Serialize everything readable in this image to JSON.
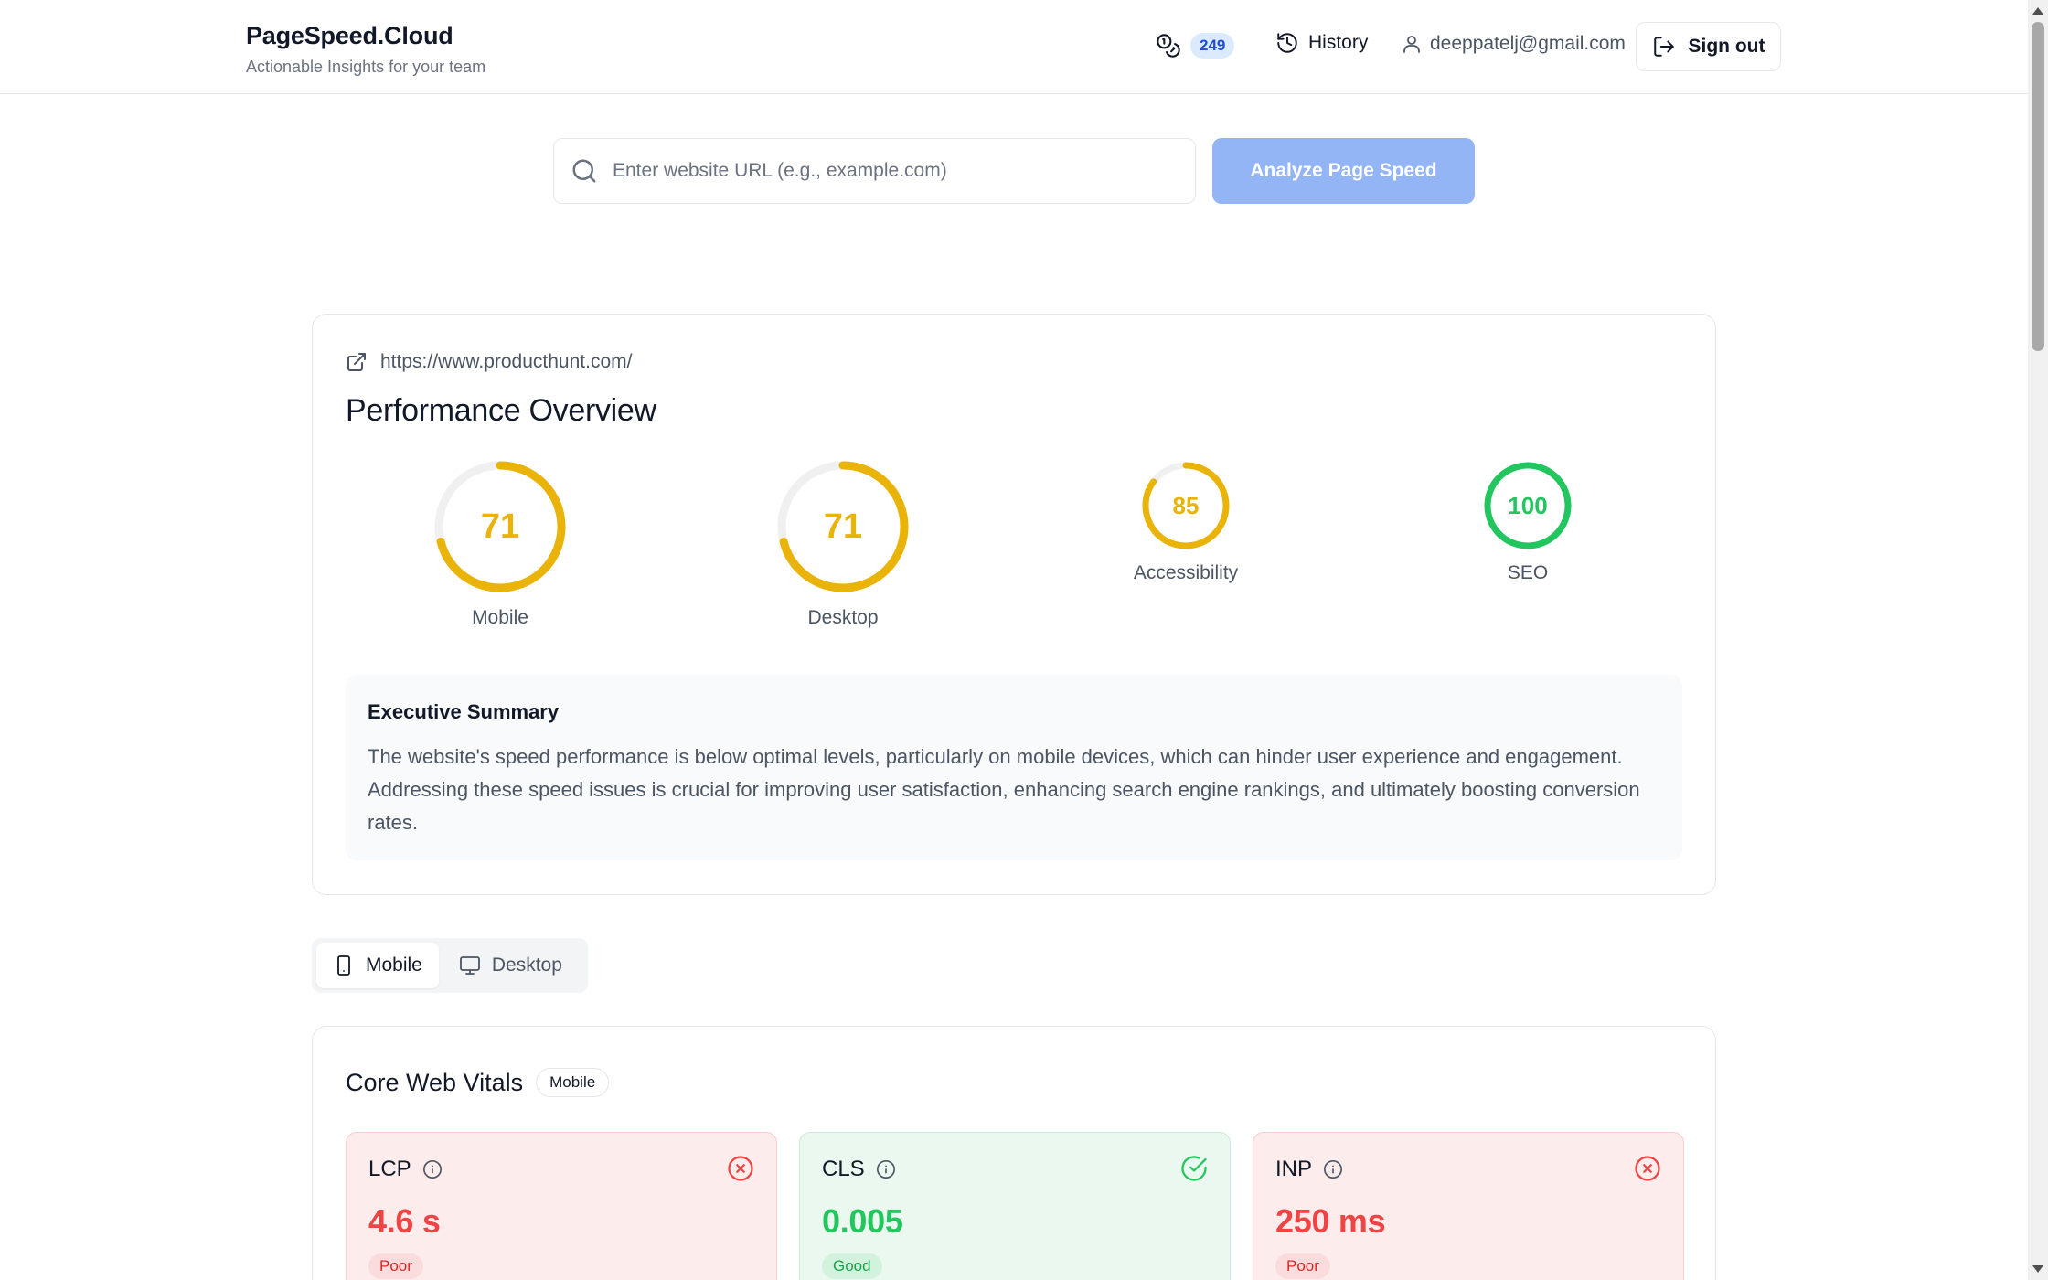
{
  "header": {
    "brand_title": "PageSpeed.Cloud",
    "brand_subtitle": "Actionable Insights for your team",
    "credits_count": "249",
    "history_label": "History",
    "user_email": "deeppatelj@gmail.com",
    "signout_label": "Sign out"
  },
  "search": {
    "placeholder": "Enter website URL (e.g., example.com)",
    "value": "",
    "analyze_label": "Analyze Page Speed"
  },
  "overview": {
    "url": "https://www.producthunt.com/",
    "title": "Performance Overview",
    "scores": [
      {
        "label": "Mobile",
        "value": 71,
        "color": "#eab308"
      },
      {
        "label": "Desktop",
        "value": 71,
        "color": "#eab308"
      },
      {
        "label": "Accessibility",
        "value": 85,
        "color": "#eab308"
      },
      {
        "label": "SEO",
        "value": 100,
        "color": "#22c55e"
      }
    ],
    "summary_title": "Executive Summary",
    "summary_text": "The website's speed performance is below optimal levels, particularly on mobile devices, which can hinder user experience and engagement. Addressing these speed issues is crucial for improving user satisfaction, enhancing search engine rankings, and ultimately boosting conversion rates."
  },
  "device_toggle": {
    "mobile_label": "Mobile",
    "desktop_label": "Desktop",
    "selected": "Mobile"
  },
  "core_web_vitals": {
    "title": "Core Web Vitals",
    "badge": "Mobile",
    "metrics": [
      {
        "name": "LCP",
        "value": "4.6 s",
        "rating": "Poor",
        "status_icon": "x-circle-icon"
      },
      {
        "name": "CLS",
        "value": "0.005",
        "rating": "Good",
        "status_icon": "check-circle-icon"
      },
      {
        "name": "INP",
        "value": "250 ms",
        "rating": "Poor",
        "status_icon": "x-circle-icon"
      }
    ]
  },
  "colors": {
    "accent_blue": "#93b4f5",
    "score_average": "#eab308",
    "score_good": "#22c55e",
    "status_poor": "#ef4444",
    "status_good": "#22c55e"
  }
}
